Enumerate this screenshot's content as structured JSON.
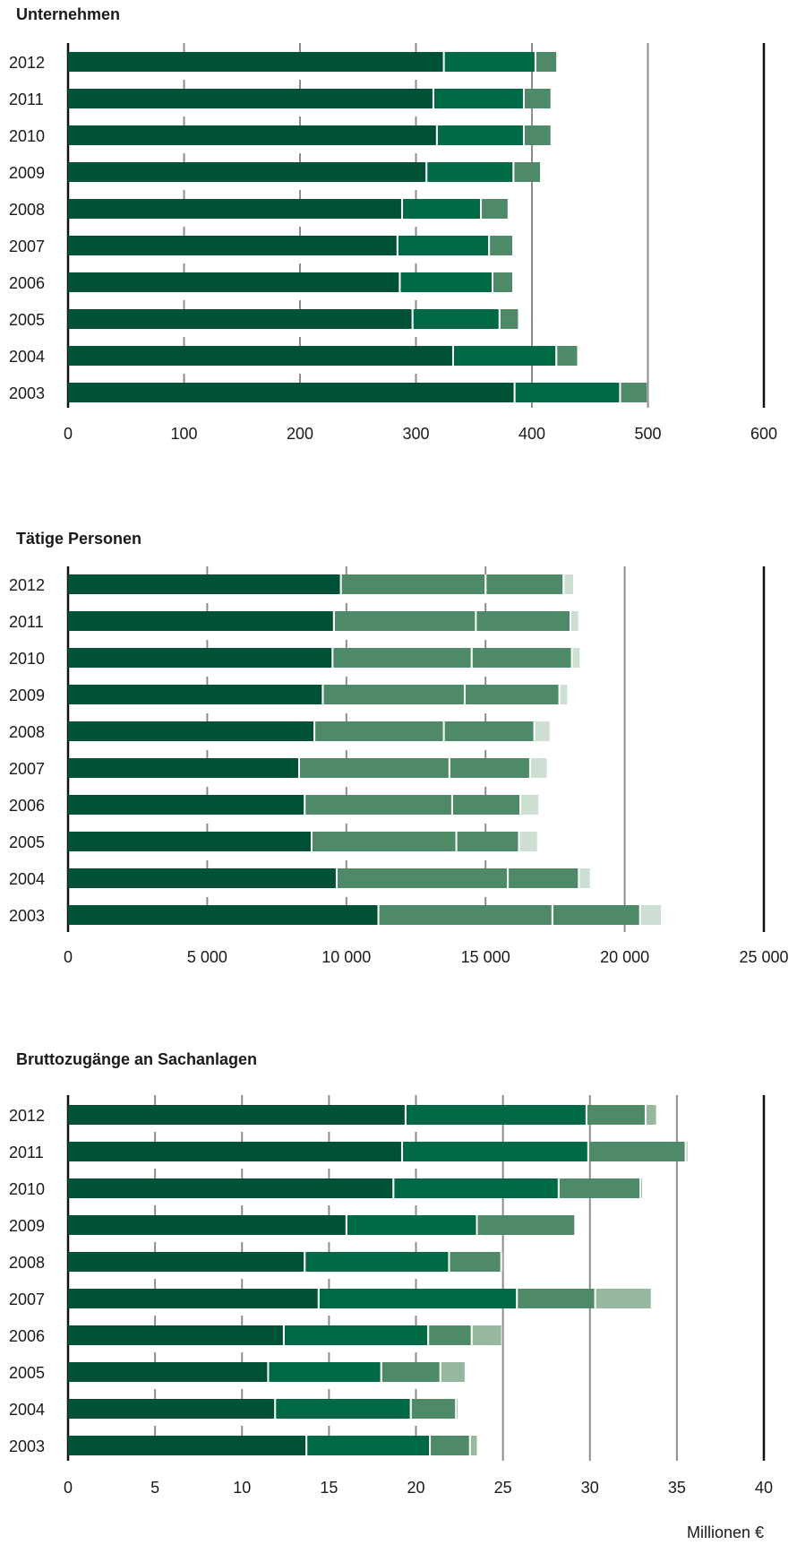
{
  "colors": {
    "seg1": "#005236",
    "seg2_dark": "#006a45",
    "seg2_mid": "#4f8a68",
    "seg3": "#4f8a68",
    "seg4": "#96b89f",
    "seg4_light": "#cddfd2",
    "gridline": "#8c8c8c",
    "axis": "#111111"
  },
  "unit_label": "Millionen €",
  "chart_data": [
    {
      "type": "bar",
      "orientation": "horizontal",
      "stacked": true,
      "title": "Unternehmen",
      "categories": [
        "2012",
        "2011",
        "2010",
        "2009",
        "2008",
        "2007",
        "2006",
        "2005",
        "2004",
        "2003"
      ],
      "xlim": [
        0,
        600
      ],
      "ticks": [
        0,
        100,
        200,
        300,
        400,
        500,
        600
      ],
      "tick_labels": [
        "0",
        "100",
        "200",
        "300",
        "400",
        "500",
        "600"
      ],
      "grid": true,
      "segment_colors": [
        "#005236",
        "#006a45",
        "#4f8a68"
      ],
      "series": [
        {
          "values": [
            324,
            315,
            318,
            309,
            288,
            284,
            286,
            297,
            332,
            385
          ]
        },
        {
          "values": [
            79,
            78,
            75,
            75,
            68,
            79,
            80,
            75,
            89,
            91
          ]
        },
        {
          "values": [
            18,
            23,
            23,
            23,
            23,
            20,
            17,
            16,
            18,
            23
          ]
        }
      ]
    },
    {
      "type": "bar",
      "orientation": "horizontal",
      "stacked": true,
      "title": "Tätige Personen",
      "categories": [
        "2012",
        "2011",
        "2010",
        "2009",
        "2008",
        "2007",
        "2006",
        "2005",
        "2004",
        "2003"
      ],
      "xlim": [
        0,
        25000
      ],
      "ticks": [
        0,
        5000,
        10000,
        15000,
        20000,
        25000
      ],
      "tick_labels": [
        "0",
        "5 000",
        "10 000",
        "15 000",
        "20 000",
        "25 000"
      ],
      "grid": true,
      "segment_colors": [
        "#005236",
        "#4f8a68",
        "#4f8a68",
        "#cddfd2"
      ],
      "series": [
        {
          "values": [
            9800,
            9550,
            9500,
            9150,
            8850,
            8300,
            8500,
            8750,
            9650,
            11150
          ]
        },
        {
          "values": [
            5200,
            5100,
            5000,
            5100,
            4650,
            5400,
            5300,
            5200,
            6150,
            6250
          ]
        },
        {
          "values": [
            2800,
            3400,
            3600,
            3400,
            3250,
            2900,
            2450,
            2250,
            2550,
            3150
          ]
        },
        {
          "values": [
            350,
            280,
            280,
            280,
            550,
            600,
            650,
            650,
            400,
            750
          ]
        }
      ]
    },
    {
      "type": "bar",
      "orientation": "horizontal",
      "stacked": true,
      "title": "Bruttozugänge an Sachanlagen",
      "categories": [
        "2012",
        "2011",
        "2010",
        "2009",
        "2008",
        "2007",
        "2006",
        "2005",
        "2004",
        "2003"
      ],
      "xlim": [
        0,
        40
      ],
      "ticks": [
        0,
        5,
        10,
        15,
        20,
        25,
        30,
        35,
        40
      ],
      "tick_labels": [
        "0",
        "5",
        "10",
        "15",
        "20",
        "25",
        "30",
        "35",
        "40"
      ],
      "grid": true,
      "segment_colors": [
        "#005236",
        "#006a45",
        "#4f8a68",
        "#96b89f"
      ],
      "series": [
        {
          "values": [
            19.4,
            19.2,
            18.7,
            16.0,
            13.6,
            14.4,
            12.4,
            11.5,
            11.9,
            13.7
          ]
        },
        {
          "values": [
            10.4,
            10.7,
            9.5,
            7.5,
            8.3,
            11.4,
            8.3,
            6.5,
            7.8,
            7.1
          ]
        },
        {
          "values": [
            3.4,
            5.6,
            4.7,
            5.6,
            3.0,
            4.5,
            2.5,
            3.4,
            2.6,
            2.3
          ]
        },
        {
          "values": [
            0.6,
            0.1,
            0.1,
            0.0,
            0.1,
            3.2,
            1.7,
            1.4,
            0.1,
            0.4
          ]
        }
      ]
    }
  ]
}
